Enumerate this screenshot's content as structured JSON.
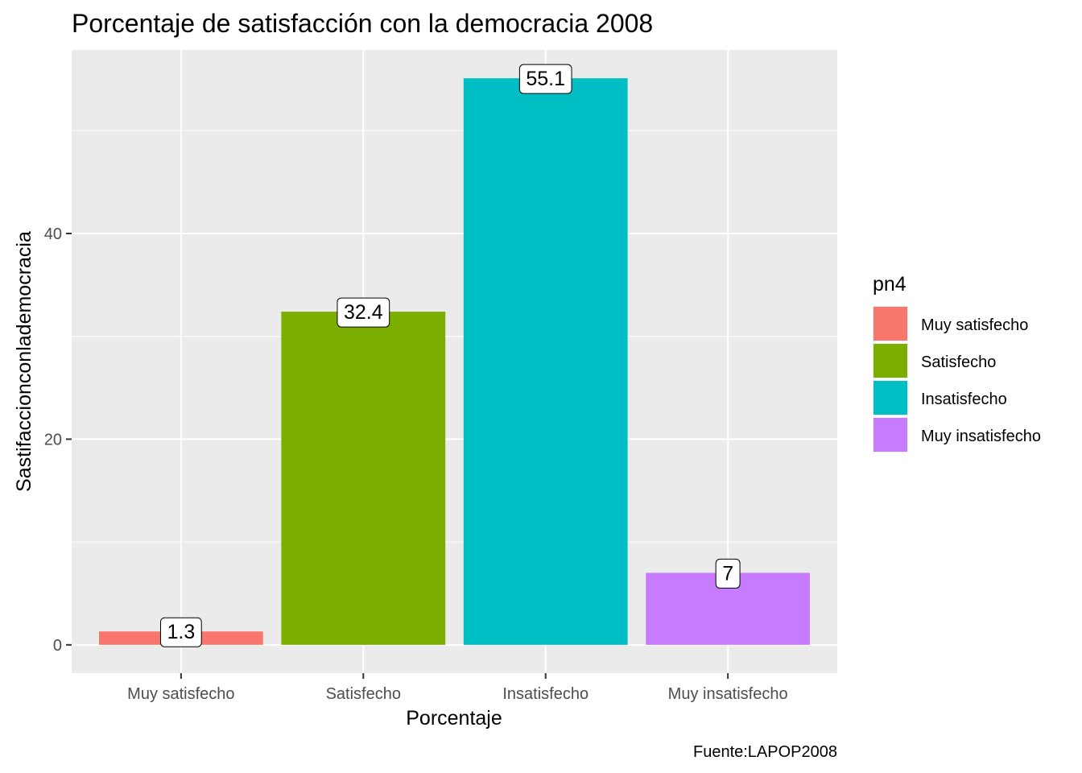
{
  "chart_data": {
    "type": "bar",
    "title": "Porcentaje de satisfacción con la democracia 2008",
    "xlabel": "Porcentaje",
    "ylabel": "Sastifaccionconlademocracia",
    "caption": "Fuente:LAPOP2008",
    "categories": [
      "Muy satisfecho",
      "Satisfecho",
      "Insatisfecho",
      "Muy insatisfecho"
    ],
    "values": [
      1.3,
      32.4,
      55.1,
      7
    ],
    "value_labels": [
      "1.3",
      "32.4",
      "55.1",
      "7"
    ],
    "colors": [
      "#F8766D",
      "#7CAE00",
      "#00BFC4",
      "#C77CFF"
    ],
    "ylim": [
      -2.755,
      57.855
    ],
    "yticks": [
      0,
      20,
      40
    ],
    "ytick_labels": [
      "0",
      "20",
      "40"
    ],
    "grid": true,
    "panel_background": "#EBEBEB",
    "legend": {
      "title": "pn4",
      "position": "right",
      "entries": [
        "Muy satisfecho",
        "Satisfecho",
        "Insatisfecho",
        "Muy insatisfecho"
      ]
    }
  }
}
